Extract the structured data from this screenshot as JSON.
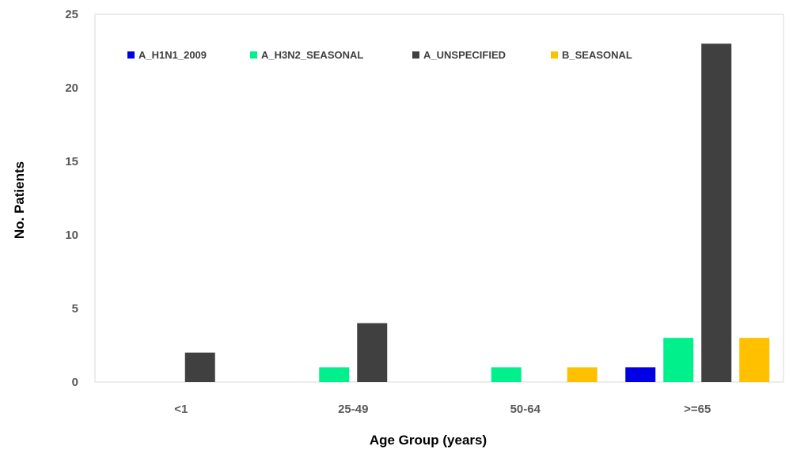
{
  "chart_data": {
    "type": "bar",
    "title": "",
    "xlabel": "Age Group (years)",
    "ylabel": "No. Patients",
    "categories": [
      "<1",
      "25-49",
      "50-64",
      ">=65"
    ],
    "series": [
      {
        "name": "A_H1N1_2009",
        "color": "#0000e6",
        "values": [
          0,
          0,
          0,
          1
        ]
      },
      {
        "name": "A_H3N2_SEASONAL",
        "color": "#00f08c",
        "values": [
          0,
          1,
          1,
          3
        ]
      },
      {
        "name": "A_UNSPECIFIED",
        "color": "#404040",
        "values": [
          2,
          4,
          0,
          23
        ]
      },
      {
        "name": "B_SEASONAL",
        "color": "#ffc000",
        "values": [
          0,
          0,
          1,
          3
        ]
      }
    ],
    "ylim": [
      0,
      25
    ],
    "yticks": [
      0,
      5,
      10,
      15,
      20,
      25
    ],
    "grid": false,
    "legend_position": "top-left"
  }
}
